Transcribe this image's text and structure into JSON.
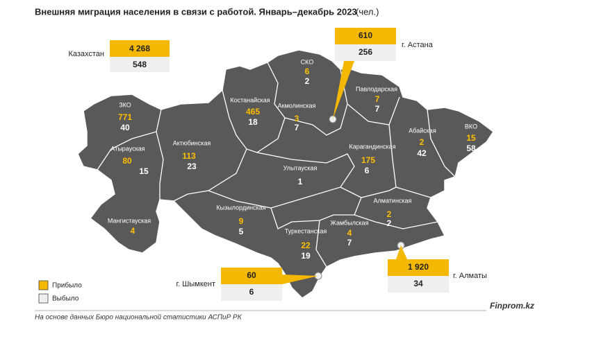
{
  "title": "Внешняя миграция населения в связи с работой. Январь–декабрь 2023",
  "unit": "(чел.)",
  "kazakhstan": {
    "name": "Казахстан",
    "arrived": {
      "value": 4268,
      "label": "4 268"
    },
    "departed": 548
  },
  "cities": [
    {
      "name": "г. Астана",
      "arrived": 610,
      "departed": 256
    },
    {
      "name": "г. Шымкент",
      "arrived": 60,
      "departed": 6
    },
    {
      "name": "г. Алматы",
      "arrived": {
        "value": 1920,
        "label": "1 920"
      },
      "departed": 34
    }
  ],
  "regions": [
    {
      "name": "ЗКО",
      "arrived": 771,
      "departed": 40
    },
    {
      "name": "Атырауская",
      "arrived": 80,
      "departed": 15
    },
    {
      "name": "Актюбинская",
      "arrived": 113,
      "departed": 23
    },
    {
      "name": "Костанайская",
      "arrived": 465,
      "departed": 18
    },
    {
      "name": "Акмолинская",
      "arrived": 3,
      "departed": 7
    },
    {
      "name": "СКО",
      "arrived": 6,
      "departed": 2
    },
    {
      "name": "Павлодарская",
      "arrived": 7,
      "departed": 7
    },
    {
      "name": "Абайская",
      "arrived": 2,
      "departed": 42
    },
    {
      "name": "ВКО",
      "arrived": 15,
      "departed": 58
    },
    {
      "name": "Карагандинская",
      "arrived": 175,
      "departed": 6
    },
    {
      "name": "Улытауская",
      "departed": 1
    },
    {
      "name": "Алматинская",
      "arrived": 2,
      "departed": 2
    },
    {
      "name": "Мангистауская",
      "arrived": 4
    },
    {
      "name": "Кызылординская",
      "arrived": 9,
      "departed": 5
    },
    {
      "name": "Туркестанская",
      "arrived": 22,
      "departed": 19
    },
    {
      "name": "Жамбылская",
      "arrived": 4,
      "departed": 7
    }
  ],
  "legend": {
    "arrived": "Прибыло",
    "departed": "Выбыло"
  },
  "source": "На основе данных Бюро национальной статистики АСПиР РК",
  "brand": "Finprom.kz"
}
